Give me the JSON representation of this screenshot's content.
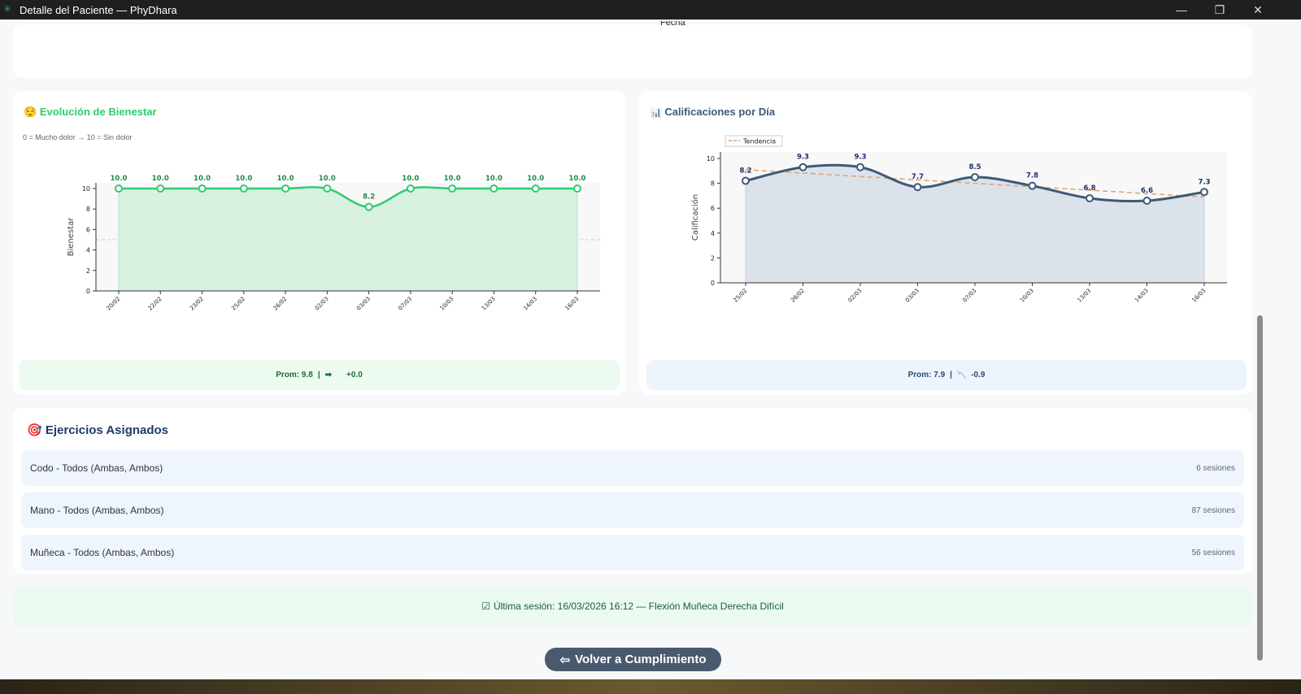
{
  "window": {
    "title": "Detalle del Paciente — PhyDhara",
    "minimize": "—",
    "maximize": "❐",
    "close": "✕"
  },
  "top_card": {
    "axis_label_cut": "Fecha"
  },
  "wellbeing": {
    "title": "Evolución de Bienestar",
    "icon": "😌",
    "subtitle": "0 = Mucho dolor → 10 = Sin dolor",
    "footer": {
      "avg": "Prom: 9.8",
      "sep": "|",
      "trend_icon": "➡",
      "trend": "+0.0"
    }
  },
  "ratings": {
    "title": "Calificaciones por Día",
    "icon": "📊",
    "footer": {
      "avg": "Prom: 7.9",
      "sep": "|",
      "trend_icon": "📉",
      "trend": "-0.9"
    }
  },
  "chart_data": [
    {
      "type": "area",
      "ylabel": "Bienestar",
      "ylim": [
        0,
        10
      ],
      "yticks": [
        0,
        2,
        4,
        6,
        8,
        10
      ],
      "reference_line": 5,
      "color": "#2ecc71",
      "categories": [
        "20/02",
        "22/02",
        "23/02",
        "25/02",
        "26/02",
        "02/03",
        "03/03",
        "07/03",
        "10/03",
        "13/03",
        "14/03",
        "16/03"
      ],
      "values": [
        10.0,
        10.0,
        10.0,
        10.0,
        10.0,
        10.0,
        8.2,
        10.0,
        10.0,
        10.0,
        10.0,
        10.0
      ]
    },
    {
      "type": "area",
      "ylabel": "Calificación",
      "ylim": [
        0,
        10
      ],
      "yticks": [
        0,
        2,
        4,
        6,
        8,
        10
      ],
      "color": "#3d5a78",
      "legend": "top-left",
      "categories": [
        "25/02",
        "26/02",
        "02/03",
        "03/03",
        "07/03",
        "10/03",
        "13/03",
        "14/03",
        "16/03"
      ],
      "values": [
        8.2,
        9.3,
        9.3,
        7.7,
        8.5,
        7.8,
        6.8,
        6.6,
        7.3
      ],
      "trend": {
        "name": "Tendencia",
        "start": 9.1,
        "end": 6.9,
        "color": "#e0a070"
      }
    }
  ],
  "exercises": {
    "title": "Ejercicios Asignados",
    "icon": "🎯",
    "items": [
      {
        "name": "Codo - Todos (Ambas, Ambos)",
        "sessions": "6 sesiones"
      },
      {
        "name": "Mano - Todos (Ambas, Ambos)",
        "sessions": "87 sesiones"
      },
      {
        "name": "Muñeca - Todos (Ambas, Ambos)",
        "sessions": "56 sesiones"
      }
    ]
  },
  "last_session": {
    "icon": "☑",
    "text": "Última sesión: 16/03/2026 16:12 — Flexión Muñeca Derecha Difícil"
  },
  "back_button": {
    "icon": "⇦",
    "label": "Volver a Cumplimiento"
  }
}
